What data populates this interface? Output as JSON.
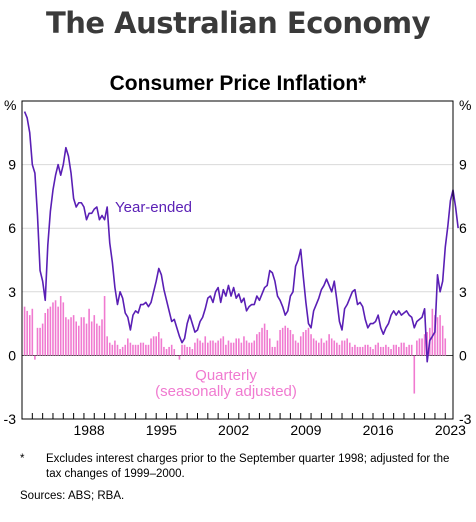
{
  "header": {
    "title": "The Australian Economy"
  },
  "footnote": {
    "marker": "*",
    "text": "Excludes interest charges prior to the September quarter 1998; adjusted for the tax changes of 1999–2000."
  },
  "sources": "Sources: ABS; RBA.",
  "chart_data": {
    "type": "line",
    "title": "Consumer Price Inflation*",
    "unit_left": "%",
    "unit_right": "%",
    "ylim": [
      -3,
      12
    ],
    "yticks": [
      -3,
      0,
      3,
      6,
      9
    ],
    "xlim": [
      1982.0,
      2023.75
    ],
    "xticks": [
      1988,
      1995,
      2002,
      2009,
      2016,
      2023
    ],
    "grid": true,
    "colors": {
      "year_ended": "#5a1fb5",
      "quarterly": "#f07ad0",
      "axis": "#000000",
      "grid": "#d9d9d9"
    },
    "annotations": [
      {
        "text": "Year-ended",
        "series": "year_ended"
      },
      {
        "text": "Quarterly",
        "series": "quarterly"
      },
      {
        "text": "(seasonally adjusted)",
        "series": "quarterly"
      }
    ],
    "series": [
      {
        "key": "year_ended",
        "start": 1982.25,
        "step": 0.25,
        "values": [
          11.5,
          11.2,
          10.5,
          9.0,
          8.6,
          6.6,
          4.0,
          3.5,
          2.6,
          5.2,
          6.8,
          7.8,
          8.5,
          9.0,
          8.5,
          9.0,
          9.8,
          9.4,
          8.6,
          7.4,
          7.0,
          7.2,
          7.2,
          7.0,
          6.4,
          6.7,
          6.7,
          6.9,
          7.0,
          6.4,
          6.6,
          6.4,
          7.0,
          5.3,
          4.4,
          3.2,
          2.4,
          3.0,
          2.7,
          2.0,
          1.8,
          1.2,
          1.9,
          2.1,
          2.0,
          2.4,
          2.4,
          2.5,
          2.3,
          2.5,
          3.0,
          3.5,
          4.1,
          3.8,
          3.1,
          2.6,
          2.1,
          1.6,
          1.7,
          1.3,
          0.9,
          0.6,
          0.8,
          1.5,
          1.9,
          1.5,
          1.1,
          1.2,
          1.6,
          1.8,
          2.2,
          2.7,
          2.8,
          2.5,
          3.0,
          3.2,
          2.5,
          3.1,
          2.8,
          3.3,
          2.8,
          3.2,
          2.7,
          2.9,
          2.5,
          2.7,
          2.1,
          2.3,
          2.4,
          2.4,
          2.8,
          2.6,
          2.9,
          3.2,
          3.3,
          4.0,
          3.9,
          3.5,
          2.8,
          2.6,
          2.3,
          1.9,
          2.1,
          2.8,
          3.0,
          4.2,
          4.5,
          5.0,
          3.7,
          2.5,
          1.5,
          1.3,
          2.1,
          2.4,
          2.7,
          3.1,
          3.3,
          3.6,
          3.3,
          3.0,
          3.5,
          2.6,
          1.6,
          1.2,
          2.2,
          2.4,
          2.7,
          3.0,
          3.1,
          2.4,
          2.5,
          2.3,
          1.7,
          1.3,
          1.5,
          1.5,
          1.6,
          1.9,
          1.3,
          1.0,
          1.3,
          1.5,
          1.9,
          2.1,
          1.9,
          2.1,
          1.9,
          2.0,
          2.1,
          1.9,
          1.8,
          1.3,
          1.6,
          1.7,
          1.8,
          2.2,
          -0.3,
          0.7,
          0.9,
          1.1,
          3.8,
          3.0,
          3.5,
          5.1,
          6.1,
          7.3,
          7.8,
          7.0,
          6.0
        ]
      },
      {
        "key": "quarterly",
        "start": 1982.25,
        "step": 0.25,
        "values": [
          2.3,
          2.1,
          1.9,
          2.2,
          -0.2,
          1.3,
          1.3,
          1.5,
          2.0,
          2.2,
          2.3,
          2.5,
          2.6,
          2.3,
          2.8,
          2.5,
          1.8,
          1.7,
          1.8,
          1.9,
          1.6,
          1.4,
          1.8,
          1.8,
          1.5,
          2.2,
          1.6,
          1.9,
          1.5,
          1.4,
          1.7,
          2.8,
          0.9,
          0.6,
          0.5,
          0.7,
          0.5,
          0.3,
          0.4,
          0.5,
          0.8,
          0.6,
          0.5,
          0.5,
          0.5,
          0.6,
          0.6,
          0.5,
          0.5,
          0.8,
          0.9,
          0.9,
          1.1,
          0.8,
          0.4,
          0.3,
          0.4,
          0.5,
          0.3,
          0.0,
          -0.2,
          0.5,
          0.5,
          0.4,
          0.4,
          0.3,
          0.6,
          0.8,
          0.7,
          0.6,
          0.9,
          0.6,
          0.7,
          0.7,
          0.6,
          0.7,
          0.8,
          0.9,
          0.5,
          0.7,
          0.6,
          0.6,
          0.8,
          0.8,
          0.6,
          0.9,
          0.7,
          0.6,
          0.6,
          0.7,
          1.0,
          1.1,
          1.3,
          1.5,
          1.2,
          0.8,
          0.4,
          0.4,
          0.7,
          1.2,
          1.3,
          1.4,
          1.3,
          1.2,
          1.0,
          0.7,
          0.6,
          0.9,
          1.1,
          1.2,
          1.3,
          1.0,
          0.8,
          0.7,
          0.6,
          0.8,
          0.6,
          0.7,
          1.0,
          0.8,
          0.7,
          0.6,
          0.5,
          0.7,
          0.7,
          0.8,
          0.6,
          0.4,
          0.5,
          0.4,
          0.4,
          0.4,
          0.5,
          0.5,
          0.4,
          0.3,
          0.5,
          0.6,
          0.4,
          0.4,
          0.5,
          0.4,
          0.3,
          0.5,
          0.5,
          0.4,
          0.6,
          0.6,
          0.4,
          0.5,
          0.5,
          -1.8,
          0.7,
          0.8,
          0.8,
          1.0,
          1.1,
          1.3,
          2.2,
          1.9,
          1.8,
          1.9,
          1.4,
          0.8
        ]
      }
    ]
  }
}
